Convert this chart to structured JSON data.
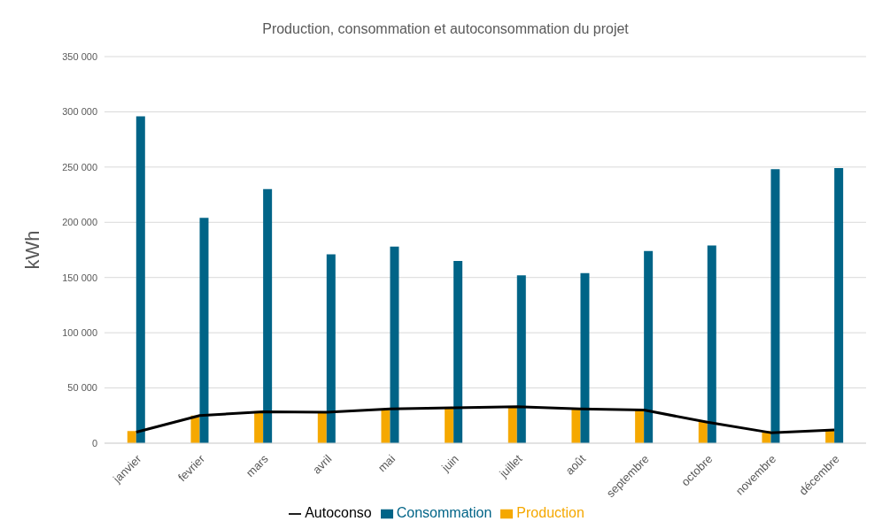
{
  "chart_data": {
    "type": "bar",
    "title": "Production, consommation et autoconsommation du projet",
    "ylabel": "kWh",
    "categories": [
      "janvier",
      "fevrier",
      "mars",
      "avril",
      "mai",
      "juin",
      "juillet",
      "août",
      "septembre",
      "octobre",
      "novembre",
      "décembre"
    ],
    "series": [
      {
        "name": "Production",
        "color": "#f5a800",
        "values": [
          11000,
          25000,
          29000,
          28000,
          30000,
          32000,
          32000,
          31000,
          30000,
          20000,
          11000,
          12000
        ]
      },
      {
        "name": "Consommation",
        "color": "#006487",
        "values": [
          296000,
          204000,
          230000,
          171000,
          178000,
          165000,
          152000,
          154000,
          174000,
          179000,
          248000,
          249000
        ]
      },
      {
        "name": "Autoconso",
        "type": "line",
        "color": "#000000",
        "values": [
          10000,
          25000,
          28500,
          28000,
          31000,
          32000,
          33000,
          31000,
          30000,
          19000,
          9500,
          12000
        ]
      }
    ],
    "ylim": [
      0,
      350000
    ],
    "yticks": [
      0,
      {
        "value": 50000,
        "label": "50 000"
      },
      {
        "value": 100000,
        "label": "100 000"
      },
      {
        "value": 150000,
        "label": "150 000"
      },
      {
        "value": 200000,
        "label": "200 000"
      },
      {
        "value": 250000,
        "label": "250 000"
      },
      {
        "value": 300000,
        "label": "300 000"
      },
      {
        "value": 350000,
        "label": "350 000"
      }
    ],
    "grid": "y",
    "legend": "bottom",
    "marker": "none"
  }
}
